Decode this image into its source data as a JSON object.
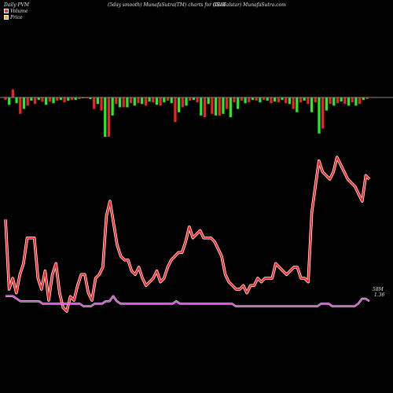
{
  "header": {
    "left": "Daily PVM",
    "middle": "(5day smooth) MunafaSutra(TM) charts for GSAT",
    "right": "(Globalstar) MunafaSutra.com"
  },
  "legend": {
    "volume_label": "Volume",
    "price_label": "Price",
    "volume_color": "#d04040",
    "price_color": "#f0a830"
  },
  "chart_data": {
    "type": "line",
    "baseline_color": "#888888",
    "volume": {
      "name": "Volume",
      "up_color": "#22ee22",
      "down_color": "#ee2222",
      "values": [
        -3,
        -9,
        10,
        -7,
        -20,
        -14,
        -10,
        -4,
        -8,
        -3,
        -5,
        -9,
        -5,
        -7,
        -4,
        -3,
        -6,
        -4,
        -3,
        -3,
        -2,
        -1,
        -1,
        -2,
        -14,
        -8,
        -16,
        -48,
        -48,
        -22,
        -8,
        -12,
        -12,
        -12,
        -7,
        -10,
        -7,
        -8,
        -10,
        -5,
        -6,
        -9,
        -10,
        -6,
        -4,
        -7,
        -30,
        -18,
        -12,
        -10,
        -4,
        -3,
        -6,
        -22,
        -24,
        -8,
        -20,
        -22,
        -22,
        -20,
        -14,
        -24,
        -6,
        -14,
        -4,
        -7,
        -6,
        -3,
        -4,
        -6,
        -3,
        -4,
        -7,
        -5,
        -6,
        -3,
        -7,
        -8,
        -14,
        -18,
        -6,
        -4,
        -8,
        -18,
        -6,
        -44,
        -38,
        -16,
        -8,
        -10,
        -7,
        -5,
        -8,
        -10,
        -6,
        -10,
        -8,
        -3,
        -2
      ]
    },
    "price": {
      "name": "Price",
      "color": "#ff2222",
      "values": [
        67,
        48,
        51,
        47,
        52,
        55,
        62,
        62,
        62,
        51,
        48,
        53,
        45,
        52,
        55,
        47,
        43,
        42,
        46,
        45,
        49,
        52,
        52,
        47,
        45,
        51,
        52,
        54,
        68,
        72,
        66,
        60,
        57,
        56,
        56,
        53,
        52,
        54,
        51,
        49,
        50,
        51,
        53,
        50,
        51,
        54,
        56,
        57,
        58,
        58,
        61,
        65,
        62,
        63,
        64,
        62,
        62,
        62,
        61,
        59,
        57,
        52,
        50,
        49,
        48,
        48,
        49,
        47,
        49,
        49,
        51,
        50,
        51,
        51,
        51,
        55,
        54,
        53,
        52,
        53,
        54,
        54,
        51,
        51,
        50,
        69,
        76,
        83,
        80,
        79,
        78,
        80,
        84,
        82,
        80,
        78,
        77,
        76,
        74,
        72,
        79,
        78
      ]
    },
    "volume_line": {
      "name": "Volume average",
      "color": "#cc44cc",
      "values": [
        26,
        26,
        26,
        25,
        24,
        24,
        24,
        24,
        24,
        24,
        23,
        23,
        23,
        23,
        23,
        23,
        23,
        23,
        23,
        23,
        23,
        22,
        22,
        22,
        23,
        23,
        23,
        24,
        24,
        26,
        24,
        23,
        23,
        23,
        23,
        23,
        23,
        23,
        23,
        23,
        23,
        23,
        23,
        23,
        23,
        23,
        24,
        23,
        23,
        23,
        23,
        23,
        23,
        23,
        23,
        23,
        23,
        23,
        23,
        23,
        23,
        23,
        22,
        22,
        22,
        22,
        22,
        22,
        22,
        22,
        22,
        22,
        22,
        22,
        22,
        22,
        22,
        22,
        22,
        22,
        22,
        22,
        22,
        22,
        22,
        23,
        23,
        23,
        22,
        22,
        22,
        22,
        22,
        22,
        22,
        23,
        25,
        25,
        24
      ]
    },
    "annotation": {
      "line1": "58M",
      "line2": "1.36"
    }
  }
}
